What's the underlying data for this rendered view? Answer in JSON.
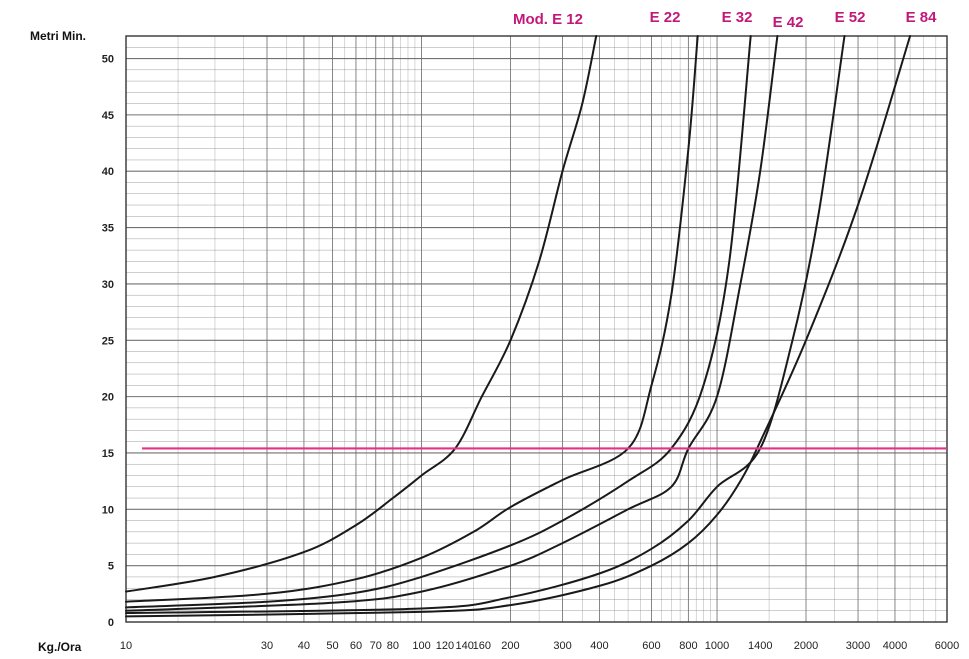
{
  "chart_data": {
    "type": "line",
    "title": "",
    "x_scale": "log",
    "xlim": [
      10,
      6000
    ],
    "ylim": [
      0,
      52
    ],
    "xlabel": "Kg./Ora",
    "ylabel": "Metri Min.",
    "x_ticks": [
      10,
      30,
      40,
      50,
      60,
      70,
      80,
      100,
      120,
      140,
      160,
      200,
      300,
      400,
      600,
      800,
      1000,
      1400,
      2000,
      3000,
      4000,
      6000
    ],
    "y_ticks": [
      0,
      5,
      10,
      15,
      20,
      25,
      30,
      35,
      40,
      45,
      50
    ],
    "grid": true,
    "legend_placement": "top-right",
    "series_label_prefix": "Mod.",
    "colors": {
      "curve": "#1a1a1a",
      "reference_line": "#e0338a",
      "label": "#c2187a",
      "grid": "#6a6a6a"
    },
    "series": [
      {
        "name": "E 12",
        "points": [
          [
            10,
            2.7
          ],
          [
            20,
            4.0
          ],
          [
            40,
            6.2
          ],
          [
            60,
            8.6
          ],
          [
            80,
            11.0
          ],
          [
            100,
            13.0
          ],
          [
            130,
            15.4
          ],
          [
            160,
            20.0
          ],
          [
            200,
            25.0
          ],
          [
            250,
            32.0
          ],
          [
            300,
            40.0
          ],
          [
            350,
            46.0
          ],
          [
            390,
            52.0
          ]
        ]
      },
      {
        "name": "E 22",
        "points": [
          [
            10,
            1.8
          ],
          [
            30,
            2.5
          ],
          [
            60,
            3.8
          ],
          [
            100,
            5.7
          ],
          [
            150,
            8.0
          ],
          [
            200,
            10.2
          ],
          [
            300,
            12.6
          ],
          [
            500,
            15.4
          ],
          [
            600,
            21.0
          ],
          [
            700,
            29.0
          ],
          [
            800,
            42.0
          ],
          [
            860,
            52.0
          ]
        ]
      },
      {
        "name": "E 32",
        "points": [
          [
            10,
            1.3
          ],
          [
            30,
            1.8
          ],
          [
            60,
            2.6
          ],
          [
            100,
            4.0
          ],
          [
            200,
            6.8
          ],
          [
            300,
            9.0
          ],
          [
            500,
            12.5
          ],
          [
            700,
            15.4
          ],
          [
            900,
            21.0
          ],
          [
            1100,
            32.0
          ],
          [
            1300,
            52.0
          ]
        ]
      },
      {
        "name": "E 42",
        "points": [
          [
            10,
            1.0
          ],
          [
            50,
            1.7
          ],
          [
            100,
            2.7
          ],
          [
            200,
            5.0
          ],
          [
            300,
            7.0
          ],
          [
            500,
            10.0
          ],
          [
            700,
            12.0
          ],
          [
            800,
            15.4
          ],
          [
            1000,
            20.0
          ],
          [
            1200,
            30.0
          ],
          [
            1400,
            40.0
          ],
          [
            1600,
            52.0
          ]
        ]
      },
      {
        "name": "E 52",
        "points": [
          [
            10,
            0.8
          ],
          [
            100,
            1.2
          ],
          [
            200,
            2.2
          ],
          [
            400,
            4.3
          ],
          [
            600,
            6.5
          ],
          [
            800,
            9.0
          ],
          [
            1000,
            12.0
          ],
          [
            1400,
            15.4
          ],
          [
            1800,
            25.0
          ],
          [
            2200,
            36.0
          ],
          [
            2700,
            52.0
          ]
        ]
      },
      {
        "name": "E 84",
        "points": [
          [
            10,
            0.5
          ],
          [
            100,
            0.9
          ],
          [
            200,
            1.5
          ],
          [
            400,
            3.2
          ],
          [
            600,
            5.0
          ],
          [
            800,
            7.0
          ],
          [
            1000,
            9.5
          ],
          [
            1200,
            12.5
          ],
          [
            1400,
            16.0
          ],
          [
            2000,
            25.0
          ],
          [
            3000,
            37.0
          ],
          [
            4500,
            52.0
          ]
        ]
      }
    ],
    "reference_line": {
      "y": 15.4
    }
  }
}
